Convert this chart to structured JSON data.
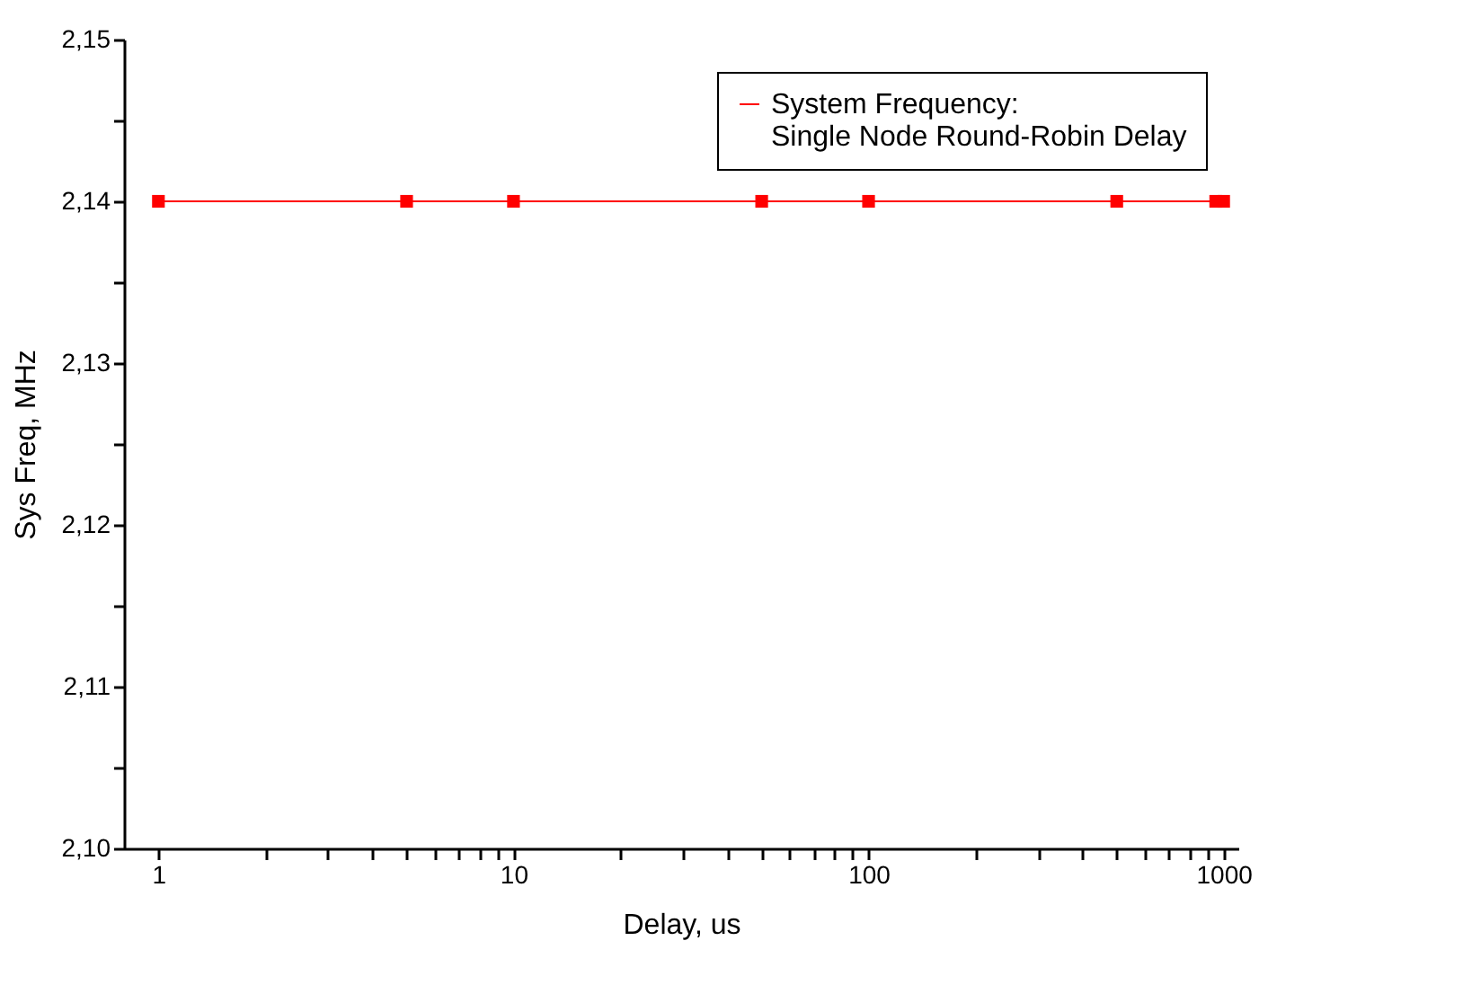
{
  "chart_data": {
    "type": "line",
    "xlabel": "Delay, us",
    "ylabel": "Sys Freq, MHz",
    "x": [
      1,
      5,
      10,
      50,
      100,
      500,
      950,
      1000
    ],
    "series": [
      {
        "name": "System Frequency:\nSingle Node Round-Robin Delay",
        "color": "#ff0000",
        "values": [
          2.14,
          2.14,
          2.14,
          2.14,
          2.14,
          2.14,
          2.14,
          2.14
        ]
      }
    ],
    "log": "x",
    "xlim": [
      0.8,
      1100
    ],
    "ylim": [
      2.1,
      2.15
    ],
    "xticks": [
      1,
      {
        "value": 2,
        "label": null
      },
      {
        "value": 3,
        "label": null
      },
      {
        "value": 4,
        "label": null
      },
      {
        "value": 5,
        "label": null
      },
      {
        "value": 6,
        "label": null
      },
      {
        "value": 7,
        "label": null
      },
      {
        "value": 8,
        "label": null
      },
      {
        "value": 9,
        "label": null
      },
      10,
      {
        "value": 20,
        "label": null
      },
      {
        "value": 30,
        "label": null
      },
      {
        "value": 40,
        "label": null
      },
      {
        "value": 50,
        "label": null
      },
      {
        "value": 60,
        "label": null
      },
      {
        "value": 70,
        "label": null
      },
      {
        "value": 80,
        "label": null
      },
      {
        "value": 90,
        "label": null
      },
      100,
      {
        "value": 200,
        "label": null
      },
      {
        "value": 300,
        "label": null
      },
      {
        "value": 400,
        "label": null
      },
      {
        "value": 500,
        "label": null
      },
      {
        "value": 600,
        "label": null
      },
      {
        "value": 700,
        "label": null
      },
      {
        "value": 800,
        "label": null
      },
      {
        "value": 900,
        "label": null
      },
      1000
    ],
    "yticks": [
      {
        "value": 2.1,
        "label": "2,10"
      },
      {
        "value": 2.105,
        "label": null
      },
      {
        "value": 2.11,
        "label": "2,11"
      },
      {
        "value": 2.115,
        "label": null
      },
      {
        "value": 2.12,
        "label": "2,12"
      },
      {
        "value": 2.125,
        "label": null
      },
      {
        "value": 2.13,
        "label": "2,13"
      },
      {
        "value": 2.135,
        "label": null
      },
      {
        "value": 2.14,
        "label": "2,14"
      },
      {
        "value": 2.145,
        "label": null
      },
      {
        "value": 2.15,
        "label": "2,15"
      }
    ],
    "marker": "square",
    "line_style": "solid",
    "grid": false,
    "legend": "top right"
  }
}
